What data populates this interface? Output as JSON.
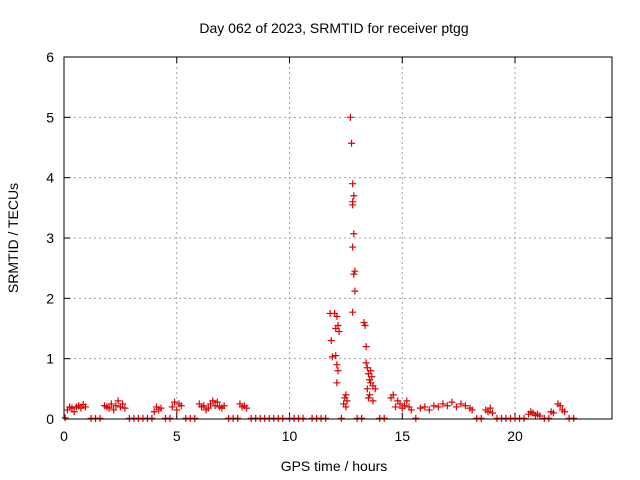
{
  "chart_data": {
    "type": "scatter",
    "title": "Day 062 of 2023, SRMTID for receiver ptgg",
    "xlabel": "GPS time / hours",
    "ylabel": "SRMTID / TECUs",
    "xlim": [
      0,
      24.3
    ],
    "ylim": [
      0,
      6
    ],
    "xticks": [
      0,
      5,
      10,
      15,
      20
    ],
    "yticks": [
      0,
      1,
      2,
      3,
      4,
      5,
      6
    ],
    "grid": true,
    "marker": "+",
    "color": "#e00000",
    "series": [
      {
        "name": "SRMTID",
        "points": [
          [
            0.05,
            0.02
          ],
          [
            0.15,
            0.15
          ],
          [
            0.25,
            0.2
          ],
          [
            0.35,
            0.18
          ],
          [
            0.45,
            0.12
          ],
          [
            0.55,
            0.2
          ],
          [
            0.65,
            0.22
          ],
          [
            0.75,
            0.18
          ],
          [
            0.85,
            0.24
          ],
          [
            0.95,
            0.2
          ],
          [
            1.2,
            0.01
          ],
          [
            1.4,
            0.01
          ],
          [
            1.6,
            0.01
          ],
          [
            1.8,
            0.22
          ],
          [
            1.9,
            0.2
          ],
          [
            2.0,
            0.18
          ],
          [
            2.1,
            0.25
          ],
          [
            2.2,
            0.15
          ],
          [
            2.3,
            0.22
          ],
          [
            2.4,
            0.3
          ],
          [
            2.5,
            0.2
          ],
          [
            2.6,
            0.25
          ],
          [
            2.7,
            0.18
          ],
          [
            2.9,
            0.01
          ],
          [
            3.1,
            0.01
          ],
          [
            3.3,
            0.01
          ],
          [
            3.5,
            0.01
          ],
          [
            3.7,
            0.01
          ],
          [
            3.9,
            0.01
          ],
          [
            4.0,
            0.12
          ],
          [
            4.1,
            0.2
          ],
          [
            4.2,
            0.15
          ],
          [
            4.3,
            0.18
          ],
          [
            4.5,
            0.01
          ],
          [
            4.7,
            0.01
          ],
          [
            4.8,
            0.2
          ],
          [
            4.9,
            0.28
          ],
          [
            5.0,
            0.15
          ],
          [
            5.1,
            0.25
          ],
          [
            5.2,
            0.22
          ],
          [
            5.4,
            0.01
          ],
          [
            5.6,
            0.01
          ],
          [
            5.8,
            0.01
          ],
          [
            6.0,
            0.25
          ],
          [
            6.1,
            0.2
          ],
          [
            6.2,
            0.22
          ],
          [
            6.3,
            0.15
          ],
          [
            6.4,
            0.18
          ],
          [
            6.5,
            0.25
          ],
          [
            6.6,
            0.3
          ],
          [
            6.7,
            0.22
          ],
          [
            6.8,
            0.28
          ],
          [
            6.9,
            0.2
          ],
          [
            7.0,
            0.18
          ],
          [
            7.1,
            0.22
          ],
          [
            7.3,
            0.01
          ],
          [
            7.5,
            0.01
          ],
          [
            7.7,
            0.01
          ],
          [
            7.8,
            0.25
          ],
          [
            7.9,
            0.2
          ],
          [
            8.0,
            0.22
          ],
          [
            8.1,
            0.18
          ],
          [
            8.3,
            0.01
          ],
          [
            8.5,
            0.01
          ],
          [
            8.7,
            0.01
          ],
          [
            8.9,
            0.01
          ],
          [
            9.1,
            0.01
          ],
          [
            9.3,
            0.01
          ],
          [
            9.5,
            0.01
          ],
          [
            9.7,
            0.01
          ],
          [
            10.0,
            0.01
          ],
          [
            10.2,
            0.01
          ],
          [
            10.4,
            0.01
          ],
          [
            10.6,
            0.01
          ],
          [
            11.0,
            0.01
          ],
          [
            11.2,
            0.01
          ],
          [
            11.4,
            0.01
          ],
          [
            11.6,
            0.01
          ],
          [
            11.8,
            1.75
          ],
          [
            11.85,
            1.3
          ],
          [
            11.9,
            1.03
          ],
          [
            12.0,
            1.75
          ],
          [
            12.05,
            1.5
          ],
          [
            12.1,
            1.7
          ],
          [
            12.15,
            1.55
          ],
          [
            12.2,
            1.45
          ],
          [
            12.05,
            1.05
          ],
          [
            12.1,
            0.9
          ],
          [
            12.15,
            0.8
          ],
          [
            12.1,
            0.6
          ],
          [
            12.3,
            0.01
          ],
          [
            12.4,
            0.25
          ],
          [
            12.45,
            0.35
          ],
          [
            12.5,
            0.4
          ],
          [
            12.55,
            0.3
          ],
          [
            12.5,
            0.2
          ],
          [
            12.7,
            5.0
          ],
          [
            12.75,
            4.57
          ],
          [
            12.8,
            3.9
          ],
          [
            12.8,
            3.6
          ],
          [
            12.85,
            3.7
          ],
          [
            12.8,
            3.55
          ],
          [
            12.85,
            3.07
          ],
          [
            12.8,
            2.85
          ],
          [
            12.9,
            2.45
          ],
          [
            12.85,
            2.4
          ],
          [
            12.9,
            2.12
          ],
          [
            12.8,
            1.77
          ],
          [
            13.0,
            0.01
          ],
          [
            13.2,
            0.01
          ],
          [
            13.3,
            1.6
          ],
          [
            13.35,
            1.55
          ],
          [
            13.4,
            1.2
          ],
          [
            13.4,
            0.93
          ],
          [
            13.45,
            0.85
          ],
          [
            13.5,
            0.75
          ],
          [
            13.55,
            0.65
          ],
          [
            13.6,
            0.6
          ],
          [
            13.45,
            0.5
          ],
          [
            13.55,
            0.4
          ],
          [
            13.6,
            0.8
          ],
          [
            13.65,
            0.7
          ],
          [
            13.7,
            0.55
          ],
          [
            13.5,
            0.35
          ],
          [
            13.7,
            0.3
          ],
          [
            13.8,
            0.5
          ],
          [
            14.0,
            0.01
          ],
          [
            14.2,
            0.01
          ],
          [
            14.5,
            0.35
          ],
          [
            14.6,
            0.4
          ],
          [
            14.7,
            0.2
          ],
          [
            14.8,
            0.3
          ],
          [
            14.9,
            0.25
          ],
          [
            15.0,
            0.18
          ],
          [
            15.1,
            0.22
          ],
          [
            15.2,
            0.3
          ],
          [
            15.3,
            0.2
          ],
          [
            15.4,
            0.15
          ],
          [
            15.6,
            0.01
          ],
          [
            15.8,
            0.18
          ],
          [
            16.0,
            0.2
          ],
          [
            16.2,
            0.15
          ],
          [
            16.4,
            0.22
          ],
          [
            16.6,
            0.2
          ],
          [
            16.8,
            0.25
          ],
          [
            17.0,
            0.22
          ],
          [
            17.2,
            0.28
          ],
          [
            17.4,
            0.2
          ],
          [
            17.6,
            0.25
          ],
          [
            17.8,
            0.22
          ],
          [
            18.0,
            0.18
          ],
          [
            18.1,
            0.15
          ],
          [
            18.3,
            0.01
          ],
          [
            18.5,
            0.01
          ],
          [
            18.7,
            0.15
          ],
          [
            18.8,
            0.12
          ],
          [
            18.9,
            0.18
          ],
          [
            19.0,
            0.1
          ],
          [
            19.2,
            0.01
          ],
          [
            19.4,
            0.01
          ],
          [
            19.6,
            0.01
          ],
          [
            19.8,
            0.01
          ],
          [
            20.0,
            0.01
          ],
          [
            20.2,
            0.01
          ],
          [
            20.4,
            0.01
          ],
          [
            20.6,
            0.08
          ],
          [
            20.7,
            0.12
          ],
          [
            20.8,
            0.1
          ],
          [
            20.9,
            0.06
          ],
          [
            21.0,
            0.08
          ],
          [
            21.1,
            0.05
          ],
          [
            21.3,
            0.01
          ],
          [
            21.5,
            0.01
          ],
          [
            21.6,
            0.12
          ],
          [
            21.7,
            0.1
          ],
          [
            21.9,
            0.25
          ],
          [
            22.0,
            0.22
          ],
          [
            22.1,
            0.15
          ],
          [
            22.2,
            0.12
          ],
          [
            22.4,
            0.01
          ],
          [
            22.6,
            0.01
          ]
        ]
      }
    ]
  }
}
